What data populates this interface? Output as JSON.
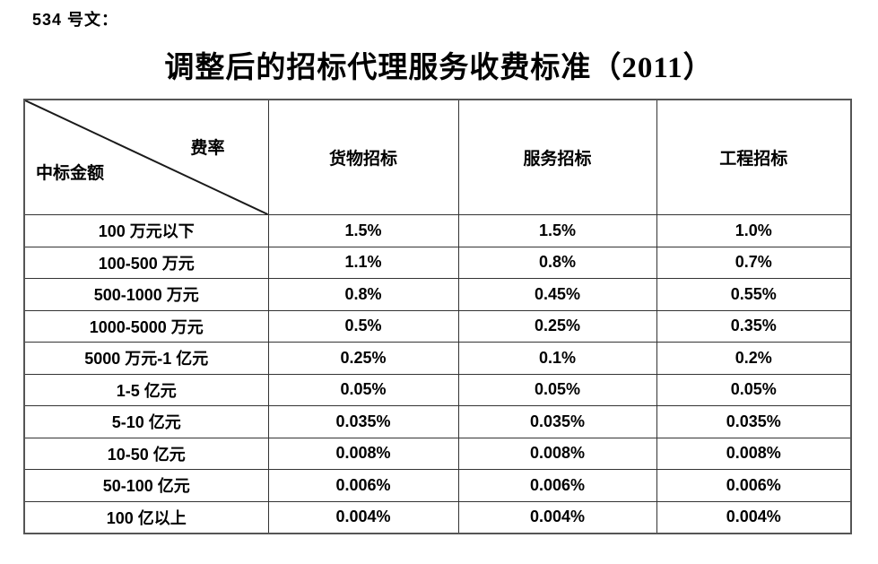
{
  "doc_label": "534 号文：",
  "title": "调整后的招标代理服务收费标准（2011）",
  "table": {
    "corner": {
      "top_right": "费率",
      "bottom_left": "中标金额"
    },
    "columns": [
      "货物招标",
      "服务招标",
      "工程招标"
    ],
    "rows": [
      {
        "amount": "100 万元以下",
        "values": [
          "1.5%",
          "1.5%",
          "1.0%"
        ]
      },
      {
        "amount": "100-500 万元",
        "values": [
          "1.1%",
          "0.8%",
          "0.7%"
        ]
      },
      {
        "amount": "500-1000 万元",
        "values": [
          "0.8%",
          "0.45%",
          "0.55%"
        ]
      },
      {
        "amount": "1000-5000 万元",
        "values": [
          "0.5%",
          "0.25%",
          "0.35%"
        ]
      },
      {
        "amount": "5000 万元-1 亿元",
        "values": [
          "0.25%",
          "0.1%",
          "0.2%"
        ]
      },
      {
        "amount": "1-5 亿元",
        "values": [
          "0.05%",
          "0.05%",
          "0.05%"
        ]
      },
      {
        "amount": "5-10 亿元",
        "values": [
          "0.035%",
          "0.035%",
          "0.035%"
        ]
      },
      {
        "amount": "10-50 亿元",
        "values": [
          "0.008%",
          "0.008%",
          "0.008%"
        ]
      },
      {
        "amount": "50-100 亿元",
        "values": [
          "0.006%",
          "0.006%",
          "0.006%"
        ]
      },
      {
        "amount": "100 亿以上",
        "values": [
          "0.004%",
          "0.004%",
          "0.004%"
        ]
      }
    ]
  },
  "colors": {
    "text": "#000000",
    "border_inner": "#333333",
    "border_outer": "#555555",
    "background": "#ffffff"
  }
}
